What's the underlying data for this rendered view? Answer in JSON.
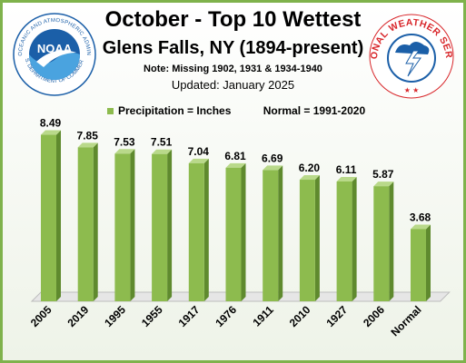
{
  "header": {
    "title": "October - Top 10 Wettest",
    "subtitle": "Glens Falls, NY (1894-present)",
    "note": "Note: Missing 1902, 1931 & 1934-1940",
    "updated": "Updated: January 2025"
  },
  "logos": {
    "left_text": "NOAA",
    "left_ring_top": "NATIONAL OCEANIC AND ATMOSPHERIC ADMINISTRATION",
    "left_ring_bottom": "U.S. DEPARTMENT OF COMMERCE",
    "right_ring_text": "NATIONAL WEATHER SERVICE"
  },
  "colors": {
    "bar_front": "#8dbb4e",
    "bar_side": "#5f8a2e",
    "bar_top": "#b9d98a",
    "frame": "#7fb24c",
    "noaa_blue": "#1b5fa8",
    "nws_red": "#d8262a"
  },
  "chart_data": {
    "type": "bar",
    "categories": [
      "2005",
      "2019",
      "1995",
      "1955",
      "1917",
      "1976",
      "1911",
      "2010",
      "1927",
      "2006",
      "Normal"
    ],
    "values": [
      8.49,
      7.85,
      7.53,
      7.51,
      7.04,
      6.81,
      6.69,
      6.2,
      6.11,
      5.87,
      3.68
    ],
    "value_labels": [
      "8.49",
      "7.85",
      "7.53",
      "7.51",
      "7.04",
      "6.81",
      "6.69",
      "6.20",
      "6.11",
      "5.87",
      "3.68"
    ],
    "legend": [
      "Precipitation = Inches",
      "Normal = 1991-2020"
    ],
    "ylim": [
      0,
      9.5
    ],
    "grid": false
  }
}
